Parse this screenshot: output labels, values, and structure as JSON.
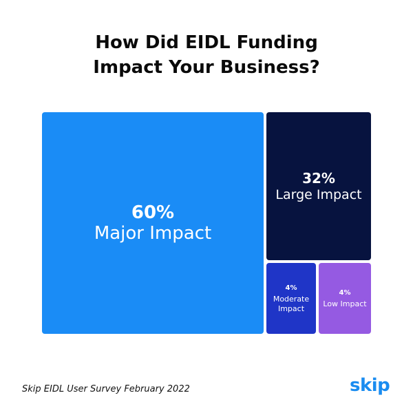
{
  "title_lines": [
    "How Did EIDL Funding",
    "Impact Your Business?"
  ],
  "footer": "Skip EIDL User Survey February 2022",
  "logo": "skip",
  "colors": {
    "major": "#1a8cf6",
    "large": "#07133f",
    "moderate": "#1f35c7",
    "low": "#955ae2"
  },
  "chart_data": {
    "type": "treemap",
    "title": "How Did EIDL Funding Impact Your Business?",
    "items": [
      {
        "label": "Major Impact",
        "value": 60,
        "value_label": "60%",
        "color": "#1a8cf6"
      },
      {
        "label": "Large Impact",
        "value": 32,
        "value_label": "32%",
        "color": "#07133f"
      },
      {
        "label": "Moderate Impact",
        "value": 4,
        "value_label": "4%",
        "color": "#1f35c7"
      },
      {
        "label": "Low Impact",
        "value": 4,
        "value_label": "4%",
        "color": "#955ae2"
      }
    ]
  }
}
